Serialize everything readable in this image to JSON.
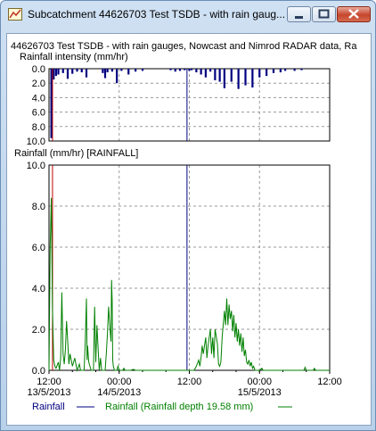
{
  "window": {
    "title": "Subcatchment 44626703 Test TSDB - with rain gauges, Nowcast and Nimrod RADAR data, Rainfall",
    "title_display": "Subcatchment 44626703 Test TSDB - with rain gaug...",
    "controls": {
      "minimize": "minimize",
      "maximize": "maximize",
      "close": "close"
    }
  },
  "graph": {
    "heading": "44626703 Test TSDB - with rain gauges, Nowcast and Nimrod RADAR data, Ra",
    "top_plot_label": "Rainfall intensity (mm/hr)",
    "bottom_plot_label": "Rainfall (mm/hr) [RAINFALL]",
    "legend": [
      {
        "label": "Rainfall",
        "color": "#000080"
      },
      {
        "label": "Rainfall (Rainfall depth 19.58 mm)",
        "color": "#008000"
      }
    ]
  },
  "chart_data": [
    {
      "type": "bar",
      "title": "Rainfall intensity (mm/hr)",
      "inverted_y": true,
      "ylim": [
        0,
        10
      ],
      "yticks": [
        "0.0",
        "2.0",
        "4.0",
        "6.0",
        "8.0",
        "10.0"
      ],
      "color": "#000080",
      "x_hours": [
        0.2,
        0.4,
        0.6,
        0.8,
        1.2,
        1.6,
        2.0,
        2.4,
        2.8,
        3.2,
        4.6,
        4.8,
        5.0,
        5.4,
        5.8,
        6.2,
        6.8,
        7.4,
        8.0,
        10.4,
        10.8,
        11.2,
        11.6,
        12.0,
        12.2,
        12.6,
        13.0,
        13.4,
        13.8,
        14.2,
        14.6,
        15.0,
        15.6,
        16.2,
        16.8,
        17.4,
        18.0,
        18.6,
        19.2,
        19.8,
        20.2,
        21.0,
        21.6
      ],
      "values": [
        9.6,
        1.5,
        1.0,
        0.8,
        0.6,
        1.4,
        0.7,
        0.4,
        0.5,
        1.2,
        0.6,
        1.3,
        0.5,
        0.4,
        2.0,
        0.3,
        0.8,
        0.4,
        0.3,
        0.2,
        0.4,
        0.3,
        0.2,
        0.3,
        0.2,
        0.5,
        0.8,
        1.2,
        0.4,
        1.6,
        1.8,
        2.7,
        1.8,
        2.8,
        2.3,
        2.6,
        1.2,
        1.0,
        0.6,
        0.5,
        0.3,
        0.3,
        0.2
      ],
      "markers": [
        {
          "x_hours": 0.3,
          "color": "#c00000"
        },
        {
          "x_hours": 11.8,
          "color": "#000080"
        }
      ]
    },
    {
      "type": "line",
      "title": "Rainfall (mm/hr) [RAINFALL]",
      "ylabel": "Rainfall (mm/hr)",
      "ylim": [
        0,
        10
      ],
      "yticks": [
        "0.0",
        "2.0",
        "4.0",
        "6.0",
        "8.0",
        "10.0"
      ],
      "x_start": "13/5/2013 12:00",
      "x_range_hours": [
        0,
        24
      ],
      "xticks": [
        {
          "hours": 0,
          "time": "12:00",
          "date": "13/5/2013"
        },
        {
          "hours": 6,
          "time": "00:00",
          "date": "14/5/2013"
        },
        {
          "hours": 12,
          "time": "12:00",
          "date": ""
        },
        {
          "hours": 18,
          "time": "00:00",
          "date": "15/5/2013"
        },
        {
          "hours": 24,
          "time": "12:00",
          "date": ""
        }
      ],
      "markers": [
        {
          "x_hours": 0.3,
          "color": "#c00000"
        },
        {
          "x_hours": 11.8,
          "color": "#000080"
        }
      ],
      "series": [
        {
          "name": "Rainfall (Rainfall depth 19.58 mm)",
          "color": "#008000",
          "points": [
            [
              0.0,
              0.0
            ],
            [
              0.1,
              6.0
            ],
            [
              0.2,
              8.4
            ],
            [
              0.3,
              3.0
            ],
            [
              0.4,
              0.5
            ],
            [
              0.5,
              0.2
            ],
            [
              0.6,
              0.1
            ],
            [
              0.8,
              0.4
            ],
            [
              0.9,
              0.0
            ],
            [
              1.0,
              0.6
            ],
            [
              1.1,
              3.8
            ],
            [
              1.2,
              0.8
            ],
            [
              1.3,
              0.3
            ],
            [
              1.4,
              1.0
            ],
            [
              1.5,
              2.4
            ],
            [
              1.6,
              1.4
            ],
            [
              1.7,
              0.3
            ],
            [
              1.8,
              0.8
            ],
            [
              2.0,
              0.2
            ],
            [
              2.2,
              0.6
            ],
            [
              2.4,
              0.0
            ],
            [
              2.6,
              0.3
            ],
            [
              2.7,
              0.0
            ],
            [
              3.0,
              0.0
            ],
            [
              3.1,
              1.4
            ],
            [
              3.2,
              3.5
            ],
            [
              3.25,
              0.5
            ],
            [
              3.3,
              1.2
            ],
            [
              3.4,
              0.4
            ],
            [
              3.5,
              0.2
            ],
            [
              3.6,
              0.0
            ],
            [
              3.8,
              0.0
            ],
            [
              3.9,
              3.1
            ],
            [
              4.0,
              0.4
            ],
            [
              4.1,
              2.2
            ],
            [
              4.2,
              1.1
            ],
            [
              4.3,
              0.0
            ],
            [
              4.4,
              0.6
            ],
            [
              4.5,
              0.0
            ],
            [
              4.8,
              0.0
            ],
            [
              4.9,
              0.8
            ],
            [
              5.0,
              1.8
            ],
            [
              5.1,
              3.1
            ],
            [
              5.2,
              2.1
            ],
            [
              5.3,
              1.4
            ],
            [
              5.35,
              4.4
            ],
            [
              5.4,
              3.4
            ],
            [
              5.45,
              0.5
            ],
            [
              5.5,
              0.2
            ],
            [
              5.6,
              0.0
            ],
            [
              5.8,
              0.0
            ],
            [
              5.9,
              0.2
            ],
            [
              6.0,
              0.0
            ],
            [
              6.3,
              0.0
            ],
            [
              6.4,
              0.1
            ],
            [
              6.5,
              0.0
            ],
            [
              7.0,
              0.0
            ],
            [
              7.2,
              0.05
            ],
            [
              7.4,
              0.0
            ],
            [
              12.4,
              0.0
            ],
            [
              12.6,
              0.2
            ],
            [
              12.8,
              0.5
            ],
            [
              12.9,
              0.2
            ],
            [
              13.0,
              0.6
            ],
            [
              13.1,
              1.2
            ],
            [
              13.2,
              0.8
            ],
            [
              13.4,
              1.6
            ],
            [
              13.5,
              0.6
            ],
            [
              13.6,
              1.2
            ],
            [
              13.8,
              2.0
            ],
            [
              13.9,
              0.8
            ],
            [
              14.0,
              1.6
            ],
            [
              14.1,
              0.6
            ],
            [
              14.2,
              2.0
            ],
            [
              14.4,
              1.3
            ],
            [
              14.5,
              0.3
            ],
            [
              14.6,
              0.2
            ],
            [
              14.7,
              0.4
            ],
            [
              14.8,
              1.6
            ],
            [
              15.0,
              2.9
            ],
            [
              15.1,
              2.2
            ],
            [
              15.2,
              3.5
            ],
            [
              15.3,
              2.2
            ],
            [
              15.4,
              3.2
            ],
            [
              15.5,
              2.5
            ],
            [
              15.6,
              2.9
            ],
            [
              15.7,
              1.9
            ],
            [
              15.8,
              2.7
            ],
            [
              15.9,
              1.6
            ],
            [
              16.0,
              2.3
            ],
            [
              16.1,
              1.4
            ],
            [
              16.2,
              2.0
            ],
            [
              16.3,
              1.2
            ],
            [
              16.4,
              1.8
            ],
            [
              16.5,
              0.9
            ],
            [
              16.6,
              1.6
            ],
            [
              16.7,
              0.7
            ],
            [
              16.8,
              1.0
            ],
            [
              16.9,
              0.4
            ],
            [
              17.0,
              0.3
            ],
            [
              17.1,
              0.5
            ],
            [
              17.2,
              0.2
            ],
            [
              17.3,
              0.4
            ],
            [
              17.4,
              0.1
            ],
            [
              17.5,
              0.2
            ],
            [
              17.6,
              0.0
            ],
            [
              18.0,
              0.0
            ],
            [
              18.2,
              0.1
            ],
            [
              18.3,
              0.0
            ],
            [
              21.8,
              0.0
            ],
            [
              21.9,
              0.15
            ],
            [
              22.0,
              0.0
            ],
            [
              22.6,
              0.0
            ],
            [
              22.7,
              0.1
            ],
            [
              22.8,
              0.0
            ],
            [
              24.0,
              0.0
            ]
          ]
        }
      ]
    }
  ]
}
